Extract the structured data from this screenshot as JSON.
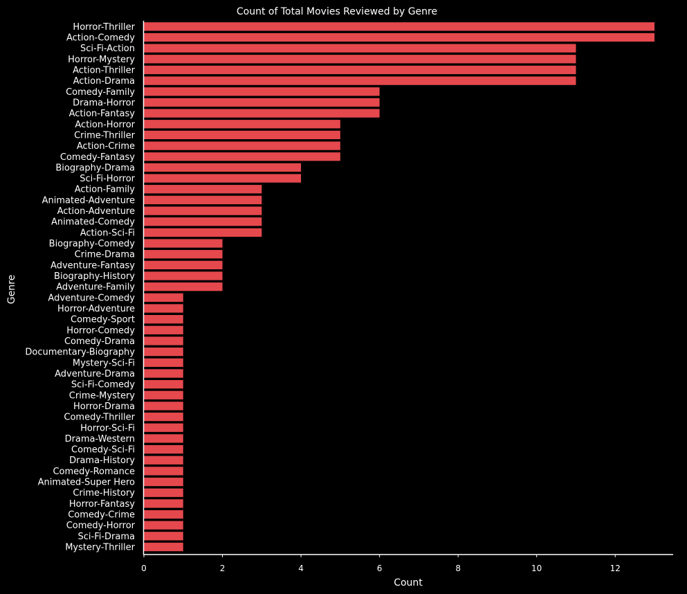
{
  "chart_data": {
    "type": "bar",
    "orientation": "horizontal",
    "title": "Count of Total Movies Reviewed by Genre",
    "xlabel": "Count",
    "ylabel": "Genre",
    "xlim": [
      0,
      13.6
    ],
    "x_ticks": [
      0,
      2,
      4,
      6,
      8,
      10,
      12
    ],
    "grid": false,
    "bar_color": "#e5484d",
    "background": "#000000",
    "categories": [
      "Horror-Thriller",
      "Action-Comedy",
      "Sci-Fi-Action",
      "Horror-Mystery",
      "Action-Thriller",
      "Action-Drama",
      "Comedy-Family",
      "Drama-Horror",
      "Action-Fantasy",
      "Action-Horror",
      "Crime-Thriller",
      "Action-Crime",
      "Comedy-Fantasy",
      "Biography-Drama",
      "Sci-Fi-Horror",
      "Action-Family",
      "Animated-Adventure",
      "Action-Adventure",
      "Animated-Comedy",
      "Action-Sci-Fi",
      "Biography-Comedy",
      "Crime-Drama",
      "Adventure-Fantasy",
      "Biography-History",
      "Adventure-Family",
      "Adventure-Comedy",
      "Horror-Adventure",
      "Comedy-Sport",
      "Horror-Comedy",
      "Comedy-Drama",
      "Documentary-Biography",
      "Mystery-Sci-Fi",
      "Adventure-Drama",
      "Sci-Fi-Comedy",
      "Crime-Mystery",
      "Horror-Drama",
      "Comedy-Thriller",
      "Horror-Sci-Fi",
      "Drama-Western",
      "Comedy-Sci-Fi",
      "Drama-History",
      "Comedy-Romance",
      "Animated-Super Hero",
      "Crime-History",
      "Horror-Fantasy",
      "Comedy-Crime",
      "Comedy-Horror",
      "Sci-Fi-Drama",
      "Mystery-Thriller"
    ],
    "values": [
      13,
      13,
      11,
      11,
      11,
      11,
      6,
      6,
      6,
      5,
      5,
      5,
      5,
      4,
      4,
      3,
      3,
      3,
      3,
      3,
      2,
      2,
      2,
      2,
      2,
      1,
      1,
      1,
      1,
      1,
      1,
      1,
      1,
      1,
      1,
      1,
      1,
      1,
      1,
      1,
      1,
      1,
      1,
      1,
      1,
      1,
      1,
      1,
      1
    ]
  }
}
